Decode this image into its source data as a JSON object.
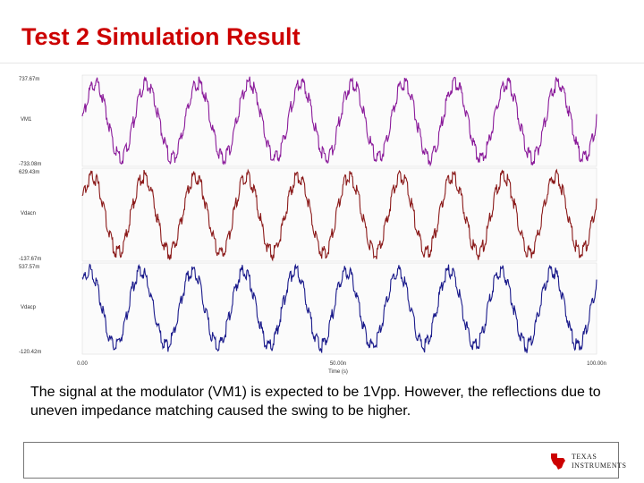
{
  "slide": {
    "title": "Test 2 Simulation Result",
    "caption": "The signal at the modulator (VM1) is expected to be 1Vpp. However, the reflections due to uneven impedance matching caused the swing to be higher."
  },
  "colors": {
    "title": "#cc0000",
    "accent": "#cc0000"
  },
  "logo": {
    "icon": "texas-state-icon",
    "line1": "TEXAS",
    "line2": "INSTRUMENTS"
  },
  "chart_data": {
    "type": "line",
    "xlabel": "Time (s)",
    "x_ticks": [
      "0.00",
      "50.00n",
      "100.00n"
    ],
    "xlim": [
      0,
      100
    ],
    "x_unit": "ns",
    "panels": [
      {
        "name": "VM1",
        "color": "#8a1a9a",
        "ylim": [
          -733.08,
          737.67
        ],
        "y_unit": "mV",
        "ymax_label": "737.67m",
        "ymin_label": "-733.08m",
        "x": [
          0,
          100
        ],
        "y": [
          0,
          0
        ]
      },
      {
        "name": "Vdacn",
        "color": "#8b1a1a",
        "ylim": [
          -137.67,
          629.43
        ],
        "y_unit": "mV",
        "ymax_label": "629.43m",
        "ymin_label": "-137.67m",
        "x": [
          0,
          100
        ],
        "y": [
          245,
          245
        ]
      },
      {
        "name": "Vdacp",
        "color": "#1a1a8b",
        "ylim": [
          -120.42,
          537.57
        ],
        "y_unit": "mV",
        "ymax_label": "537.57m",
        "ymin_label": "-120.42m",
        "x": [
          0,
          100
        ],
        "y": [
          208,
          208
        ]
      }
    ],
    "signal_cycles": 10,
    "grid": false,
    "legend": "none"
  }
}
